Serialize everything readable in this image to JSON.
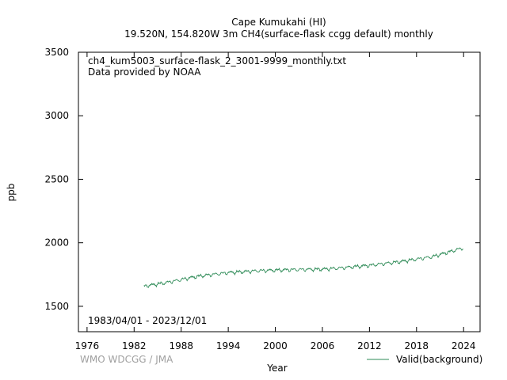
{
  "chart_data": {
    "type": "line",
    "title_line1": "Cape Kumukahi (HI)",
    "title_line2": "19.520N, 154.820W 3m    CH4(surface-flask ccgg default) monthly",
    "filename": "ch4_kum5003_surface-flask_2_3001-9999_monthly.txt",
    "provider": "Data provided by NOAA",
    "date_range": "1983/04/01 - 2023/12/01",
    "xlabel": "Year",
    "ylabel": "ppb",
    "credit": "WMO WDCGG / JMA",
    "xlim": [
      1974.9,
      2026.1
    ],
    "ylim": [
      1300,
      3500
    ],
    "x_ticks": [
      1976,
      1982,
      1988,
      1994,
      2000,
      2006,
      2012,
      2018,
      2024
    ],
    "y_ticks": [
      1500,
      2000,
      2500,
      3000,
      3500
    ],
    "series": [
      {
        "name": "Valid(background)",
        "color": "#2e8b57",
        "start": 1983.25,
        "end": 2023.917,
        "trend_anchors": [
          [
            1983.25,
            1658
          ],
          [
            1986,
            1685
          ],
          [
            1990,
            1735
          ],
          [
            1994,
            1765
          ],
          [
            1998,
            1780
          ],
          [
            2002,
            1788
          ],
          [
            2006,
            1792
          ],
          [
            2008,
            1800
          ],
          [
            2012,
            1822
          ],
          [
            2016,
            1852
          ],
          [
            2020,
            1890
          ],
          [
            2022,
            1925
          ],
          [
            2023.917,
            1960
          ]
        ],
        "seasonal_amplitude": 18
      }
    ]
  }
}
